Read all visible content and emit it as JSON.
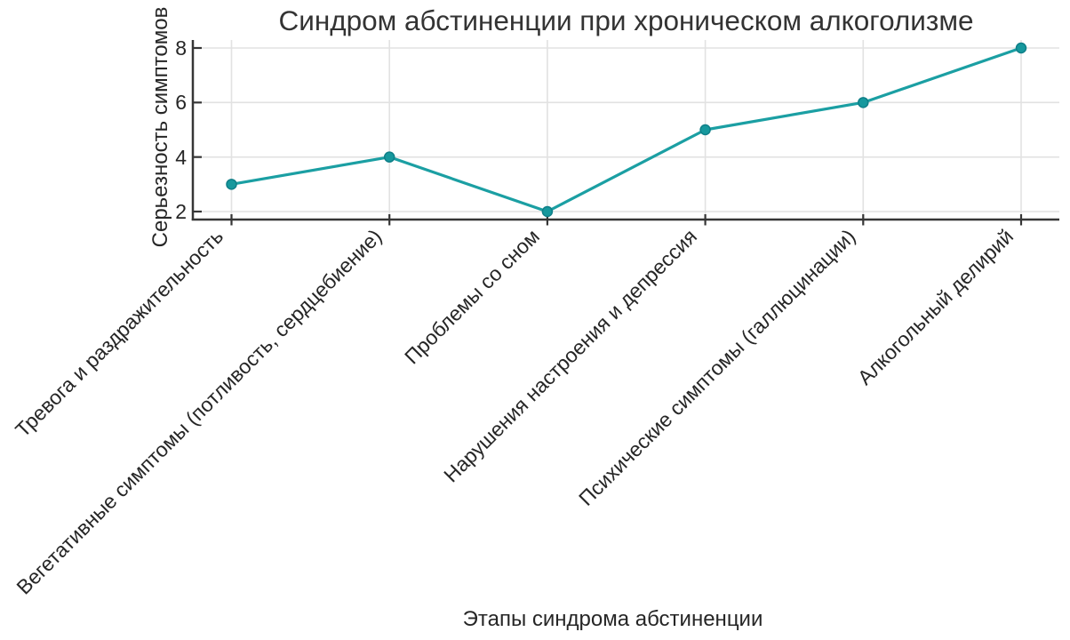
{
  "chart_data": {
    "type": "line",
    "title": "Синдром абстиненции при хроническом алкоголизме",
    "xlabel": "Этапы синдрома абстиненции",
    "ylabel": "Серьезность симптомов",
    "categories": [
      "Тревога и раздражительность",
      "Вегетативные симптомы (потливость, сердцебиение)",
      "Проблемы со сном",
      "Нарушения настроения и депрессия",
      "Психические симптомы (галлюцинации)",
      "Алкогольный делирий"
    ],
    "values": [
      3,
      4,
      2,
      5,
      6,
      8
    ],
    "yticks": [
      2,
      4,
      6,
      8
    ],
    "ylim": [
      1.7,
      8.3
    ],
    "grid": true,
    "legend": false,
    "line_color": "#1b9fa3",
    "marker_fill": "#16989d",
    "marker_stroke": "#0f7f88",
    "axis_color": "#363636",
    "grid_color": "#e2e2e2",
    "text_color": "#262626"
  }
}
